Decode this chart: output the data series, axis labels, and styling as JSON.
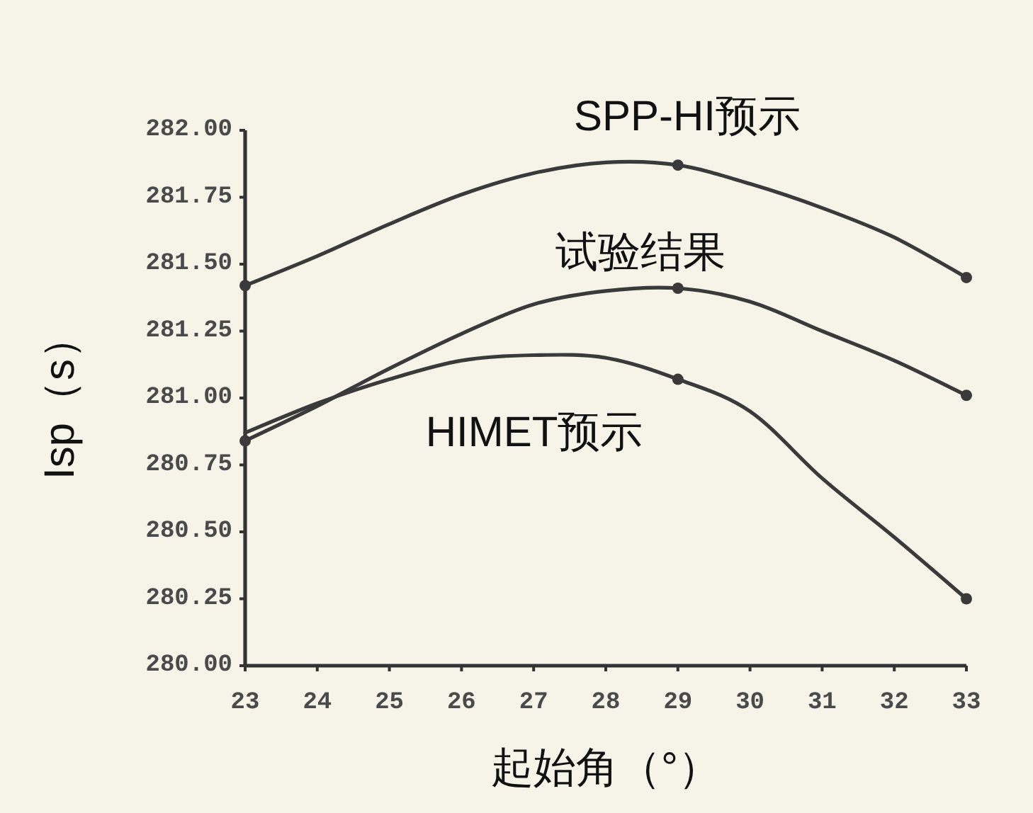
{
  "chart_data": {
    "type": "line",
    "xlabel": "起始角（°）",
    "ylabel": "Isp（s）",
    "xlim": [
      23,
      33
    ],
    "xticks": [
      23,
      24,
      25,
      26,
      27,
      28,
      29,
      30,
      31,
      32,
      33
    ],
    "ylim": [
      280,
      282
    ],
    "yticks": [
      {
        "value": 280,
        "label": "280.00"
      },
      {
        "value": 280.25,
        "label": "280.25"
      },
      {
        "value": 280.5,
        "label": "280.50"
      },
      {
        "value": 280.75,
        "label": "280.75"
      },
      {
        "value": 281,
        "label": "281.00"
      },
      {
        "value": 281.25,
        "label": "281.25"
      },
      {
        "value": 281.5,
        "label": "281.50"
      },
      {
        "value": 281.75,
        "label": "281.75"
      },
      {
        "value": 282,
        "label": "282.00"
      }
    ],
    "marker": "none",
    "line_style": "solid",
    "series": [
      {
        "name": "SPP-HI预示",
        "color": "#3a3a3a",
        "x": [
          23,
          24,
          25,
          26,
          27,
          28,
          29,
          30,
          31,
          32,
          33
        ],
        "values": [
          281.42,
          281.53,
          281.65,
          281.76,
          281.84,
          281.88,
          281.87,
          281.8,
          281.71,
          281.6,
          281.45
        ]
      },
      {
        "name": "试验结果",
        "color": "#3a3a3a",
        "x": [
          23,
          24,
          25,
          26,
          27,
          28,
          29,
          30,
          31,
          32,
          33
        ],
        "values": [
          280.84,
          280.97,
          281.11,
          281.24,
          281.35,
          281.4,
          281.41,
          281.36,
          281.25,
          281.14,
          281.01
        ]
      },
      {
        "name": "HIMET预示",
        "color": "#3a3a3a",
        "x": [
          23,
          24,
          25,
          26,
          27,
          28,
          29,
          30,
          31,
          32,
          33
        ],
        "values": [
          280.87,
          280.98,
          281.07,
          281.14,
          281.16,
          281.15,
          281.07,
          280.95,
          280.7,
          280.48,
          280.25
        ]
      },
      {
        "type": "scatter",
        "marker": "circle",
        "color": "#3a3a3a",
        "x": [
          23,
          29,
          33
        ],
        "values": [
          281.42,
          281.87,
          281.45
        ]
      },
      {
        "type": "scatter",
        "marker": "circle",
        "color": "#3a3a3a",
        "x": [
          23,
          29,
          33
        ],
        "values": [
          280.84,
          281.41,
          281.01
        ]
      },
      {
        "type": "scatter",
        "marker": "circle",
        "color": "#3a3a3a",
        "x": [
          29,
          33
        ],
        "values": [
          281.07,
          280.25
        ]
      }
    ]
  }
}
